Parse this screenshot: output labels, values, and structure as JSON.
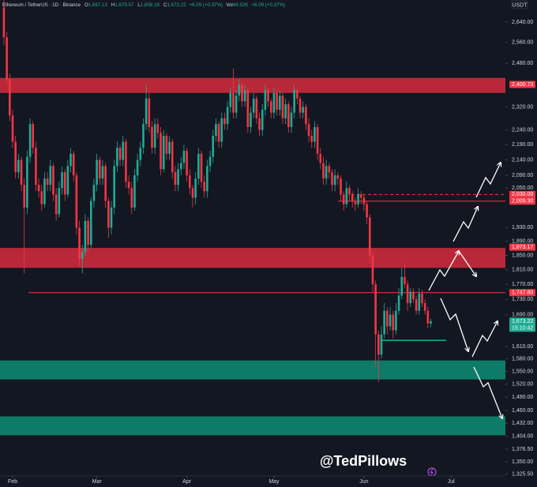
{
  "chart_data": {
    "type": "candlestick",
    "header": {
      "symbol": "Ethereum / TetherUS · 1D · Binance",
      "fields": [
        {
          "key": "O",
          "value": "1,667.13"
        },
        {
          "key": "H",
          "value": "1,679.57"
        },
        {
          "key": "L",
          "value": "1,658.18"
        },
        {
          "key": "C",
          "value": "1,673.22"
        }
      ],
      "change": "+6.09 (+0.37%)",
      "volume_key": "Vol",
      "volume": "49.52K",
      "volume_change": "+6.09 (+0.37%)"
    },
    "currency": "USDT",
    "watermark": "@TedPillows",
    "log_scale": true,
    "up_color": "#22ab94",
    "down_color": "#f23645",
    "open": [
      2700,
      2580,
      2420,
      2290,
      2200,
      2100,
      2140,
      2060,
      1990,
      2150,
      2260,
      2180,
      2060,
      2040,
      2000,
      2080,
      2060,
      2120,
      2030,
      1970,
      2050,
      2100,
      2030,
      2120,
      2160,
      2090,
      1930,
      1840,
      1860,
      1950,
      1880,
      2010,
      2060,
      2140,
      2080,
      2120,
      2010,
      1930,
      1990,
      2120,
      2180,
      2140,
      2200,
      2070,
      2050,
      1990,
      2090,
      2140,
      2180,
      2260,
      2350,
      2250,
      2180,
      2260,
      2230,
      2110,
      2220,
      2160,
      2200,
      2100,
      2060,
      2110,
      2130,
      2170,
      2090,
      2050,
      2020,
      2080,
      2160,
      2070,
      2040,
      2120,
      2150,
      2220,
      2260,
      2200,
      2280,
      2260,
      2320,
      2370,
      2300,
      2360,
      2400,
      2340,
      2380,
      2250,
      2300,
      2350,
      2280,
      2240,
      2310,
      2380,
      2340,
      2300,
      2370,
      2310,
      2360,
      2280,
      2330,
      2250,
      2300,
      2380,
      2350,
      2300,
      2320,
      2260,
      2220,
      2200,
      2250,
      2160,
      2130,
      2080,
      2120,
      2100,
      2060,
      2090,
      2080,
      2030,
      2000,
      2050,
      2030,
      2010,
      2000,
      2030,
      2020,
      2000,
      1960,
      1850,
      1770,
      1640,
      1590,
      1640,
      1700,
      1660,
      1690,
      1650,
      1700,
      1740,
      1790,
      1770,
      1720,
      1750,
      1730,
      1700,
      1745,
      1720,
      1700,
      1667.13
    ],
    "high": [
      2730,
      2600,
      2440,
      2310,
      2220,
      2160,
      2150,
      2080,
      2170,
      2280,
      2270,
      2200,
      2080,
      2060,
      2100,
      2100,
      2140,
      2130,
      2050,
      2070,
      2120,
      2110,
      2140,
      2180,
      2170,
      2100,
      1950,
      1880,
      1970,
      1960,
      2020,
      2080,
      2160,
      2150,
      2140,
      2130,
      2020,
      2010,
      2140,
      2200,
      2190,
      2220,
      2210,
      2090,
      2070,
      2110,
      2160,
      2200,
      2280,
      2400,
      2370,
      2270,
      2280,
      2280,
      2250,
      2240,
      2230,
      2220,
      2210,
      2120,
      2130,
      2150,
      2190,
      2180,
      2110,
      2060,
      2100,
      2180,
      2170,
      2090,
      2140,
      2170,
      2240,
      2280,
      2270,
      2300,
      2300,
      2340,
      2390,
      2460,
      2380,
      2420,
      2410,
      2400,
      2390,
      2320,
      2370,
      2360,
      2300,
      2330,
      2400,
      2390,
      2350,
      2390,
      2380,
      2380,
      2370,
      2350,
      2340,
      2320,
      2400,
      2390,
      2360,
      2340,
      2330,
      2280,
      2240,
      2270,
      2260,
      2180,
      2150,
      2140,
      2130,
      2110,
      2110,
      2100,
      2090,
      2040,
      2070,
      2060,
      2040,
      2020,
      2050,
      2040,
      2030,
      2010,
      1970,
      1860,
      1780,
      1650,
      1660,
      1720,
      1710,
      1710,
      1700,
      1720,
      1760,
      1815,
      1830,
      1780,
      1760,
      1760,
      1740,
      1760,
      1755,
      1730,
      1710,
      1679.57
    ],
    "low": [
      2550,
      2400,
      2270,
      2180,
      2080,
      2080,
      2040,
      1800,
      1970,
      2130,
      2160,
      2040,
      2020,
      1980,
      1990,
      2040,
      2040,
      2010,
      1950,
      1960,
      2030,
      2010,
      2020,
      2100,
      2070,
      1910,
      1820,
      1800,
      1850,
      1860,
      1870,
      1990,
      2040,
      2060,
      2060,
      1990,
      1900,
      1910,
      1970,
      2100,
      2120,
      2120,
      2050,
      2030,
      1970,
      1980,
      2070,
      2120,
      2160,
      2240,
      2230,
      2160,
      2160,
      2210,
      2090,
      2100,
      2140,
      2140,
      2080,
      2040,
      2040,
      2090,
      2110,
      2070,
      2030,
      1990,
      2000,
      2060,
      2050,
      2020,
      2020,
      2100,
      2130,
      2200,
      2180,
      2180,
      2240,
      2240,
      2300,
      2280,
      2280,
      2340,
      2320,
      2320,
      2230,
      2230,
      2280,
      2260,
      2220,
      2220,
      2290,
      2320,
      2280,
      2280,
      2290,
      2290,
      2260,
      2260,
      2230,
      2230,
      2280,
      2330,
      2280,
      2280,
      2240,
      2200,
      2180,
      2180,
      2140,
      2110,
      2060,
      2060,
      2080,
      2040,
      2040,
      2060,
      2010,
      1980,
      1990,
      2010,
      1990,
      1980,
      1990,
      2000,
      1980,
      1940,
      1830,
      1750,
      1560,
      1525,
      1580,
      1630,
      1640,
      1650,
      1630,
      1640,
      1690,
      1730,
      1760,
      1700,
      1710,
      1720,
      1690,
      1690,
      1710,
      1690,
      1655,
      1658.18
    ],
    "close": [
      2580,
      2420,
      2290,
      2200,
      2100,
      2140,
      2060,
      1990,
      2150,
      2260,
      2180,
      2060,
      2040,
      2000,
      2080,
      2060,
      2120,
      2030,
      1970,
      2050,
      2100,
      2030,
      2120,
      2160,
      2090,
      1930,
      1840,
      1860,
      1950,
      1880,
      2010,
      2060,
      2140,
      2080,
      2120,
      2010,
      1930,
      1990,
      2120,
      2180,
      2140,
      2200,
      2070,
      2050,
      1990,
      2090,
      2140,
      2180,
      2260,
      2350,
      2250,
      2180,
      2260,
      2230,
      2110,
      2220,
      2160,
      2200,
      2100,
      2060,
      2110,
      2130,
      2170,
      2090,
      2050,
      2020,
      2080,
      2160,
      2070,
      2040,
      2120,
      2150,
      2220,
      2260,
      2200,
      2280,
      2260,
      2320,
      2370,
      2300,
      2360,
      2400,
      2340,
      2380,
      2250,
      2300,
      2350,
      2280,
      2240,
      2310,
      2380,
      2340,
      2300,
      2370,
      2310,
      2360,
      2280,
      2330,
      2250,
      2300,
      2380,
      2350,
      2300,
      2320,
      2260,
      2220,
      2200,
      2250,
      2160,
      2130,
      2080,
      2120,
      2100,
      2060,
      2090,
      2080,
      2030,
      2000,
      2050,
      2030,
      2010,
      2000,
      2030,
      2020,
      2000,
      1960,
      1850,
      1770,
      1640,
      1590,
      1640,
      1700,
      1660,
      1690,
      1650,
      1700,
      1740,
      1790,
      1770,
      1720,
      1750,
      1730,
      1700,
      1745,
      1720,
      1700,
      1667.13,
      1673.22
    ],
    "xlim": [
      -1.35,
      172.7
    ],
    "xticks": [
      {
        "value": 3,
        "label": "Feb"
      },
      {
        "value": 32,
        "label": "Mar"
      },
      {
        "value": 63,
        "label": "Apr"
      },
      {
        "value": 93,
        "label": "May"
      },
      {
        "value": 124,
        "label": "Jun"
      },
      {
        "value": 154,
        "label": "Jul"
      }
    ],
    "ylim": [
      1323,
      2731
    ],
    "yticks": [
      {
        "value": 2640,
        "label": "2,640.00"
      },
      {
        "value": 2560,
        "label": "2,560.00"
      },
      {
        "value": 2480,
        "label": "2,480.00"
      },
      {
        "value": 2320,
        "label": "2,320.00"
      },
      {
        "value": 2240,
        "label": "2,240.00"
      },
      {
        "value": 2190,
        "label": "2,190.00"
      },
      {
        "value": 2140,
        "label": "2,140.00"
      },
      {
        "value": 2090,
        "label": "2,090.00"
      },
      {
        "value": 2050,
        "label": "2,050.00"
      },
      {
        "value": 1930,
        "label": "1,930.00"
      },
      {
        "value": 1890,
        "label": "1,890.00"
      },
      {
        "value": 1850,
        "label": "1,850.00"
      },
      {
        "value": 1810,
        "label": "1,810.00"
      },
      {
        "value": 1770,
        "label": "1,770.00"
      },
      {
        "value": 1730,
        "label": "1,730.00"
      },
      {
        "value": 1690,
        "label": "1,690.00"
      },
      {
        "value": 1610,
        "label": "1,610.00"
      },
      {
        "value": 1580,
        "label": "1,580.00"
      },
      {
        "value": 1550,
        "label": "1,550.00"
      },
      {
        "value": 1520,
        "label": "1,520.00"
      },
      {
        "value": 1490,
        "label": "1,490.00"
      },
      {
        "value": 1460,
        "label": "1,460.00"
      },
      {
        "value": 1432,
        "label": "1,432.00"
      },
      {
        "value": 1404,
        "label": "1,404.00"
      },
      {
        "value": 1376.5,
        "label": "1,376.50"
      },
      {
        "value": 1350,
        "label": "1,350.00"
      },
      {
        "value": 1325.5,
        "label": "1,325.50"
      }
    ],
    "zones": [
      {
        "from": 2370,
        "to": 2425,
        "color": "#d62c3c"
      },
      {
        "from": 1815,
        "to": 1871,
        "color": "#d62c3c"
      },
      {
        "from": 1531,
        "to": 1576,
        "color": "#0e8c74"
      },
      {
        "from": 1406,
        "to": 1447,
        "color": "#0e8c74"
      }
    ],
    "levels": [
      {
        "value": 1747.8,
        "color": "#f23645",
        "dashed": false
      },
      {
        "value": 2009.3,
        "color": "#f23645",
        "dashed": false
      },
      {
        "value": 2030,
        "color": "#f23645",
        "dashed": true
      },
      {
        "value": 1625,
        "color": "#22ab94",
        "dashed": false
      }
    ],
    "price_tags": [
      {
        "value": 2400.73,
        "label": "2,400.73",
        "color": "#f23645"
      },
      {
        "value": 2030,
        "label": "2,030.00",
        "color": "#f23645"
      },
      {
        "value": 2009.3,
        "label": "2,009.30",
        "color": "#f23645"
      },
      {
        "value": 1873.17,
        "label": "1,873.17",
        "color": "#f23645"
      },
      {
        "value": 1747.8,
        "label": "1,747.80",
        "color": "#f23645"
      },
      {
        "value": 1673.22,
        "label": "1,673.22",
        "color": "#22ab94",
        "countdown": "15:10:42"
      }
    ]
  }
}
